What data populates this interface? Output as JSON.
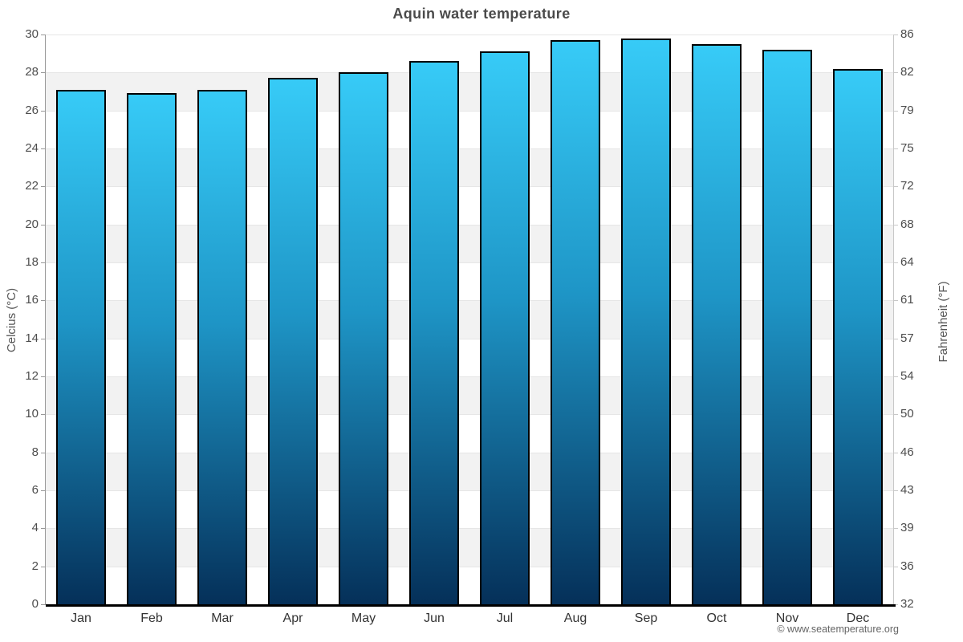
{
  "title": "Aquin water temperature",
  "footer_credit": "© www.seatemperature.org",
  "y_axis_left": {
    "title": "Celcius (°C)"
  },
  "y_axis_right": {
    "title": "Fahrenheit (°F)"
  },
  "chart_data": {
    "type": "bar",
    "title": "Aquin water temperature",
    "series_name": "Water temperature",
    "unit": "°C",
    "categories": [
      "Jan",
      "Feb",
      "Mar",
      "Apr",
      "May",
      "Jun",
      "Jul",
      "Aug",
      "Sep",
      "Oct",
      "Nov",
      "Dec"
    ],
    "values": [
      27.1,
      26.9,
      27.1,
      27.7,
      28.0,
      28.6,
      29.1,
      29.7,
      29.8,
      29.5,
      29.2,
      28.2
    ],
    "ylabel_left": "Celcius (°C)",
    "ylabel_right": "Fahrenheit (°F)",
    "ylim_celsius": [
      0,
      30
    ],
    "yticks_celsius": [
      0,
      2,
      4,
      6,
      8,
      10,
      12,
      14,
      16,
      18,
      20,
      22,
      24,
      26,
      28,
      30
    ],
    "yticks_fahrenheit": [
      "32",
      "36",
      "39",
      "43",
      "46",
      "50",
      "54",
      "57",
      "61",
      "64",
      "68",
      "72",
      "75",
      "79",
      "82",
      "86"
    ],
    "grid": "horizontal-bands-alternating",
    "legend": "none",
    "colors": {
      "bar_gradient_top": "#37cbf7",
      "bar_gradient_mid": "#1e95c6",
      "bar_gradient_bottom": "#053059",
      "bar_border": "#000000",
      "band_gray": "#f2f2f2",
      "band_white": "#ffffff",
      "gridline": "#e6e6e6",
      "axis_left_line": "#999999",
      "axis_right_line": "#c8c8c8",
      "axis_bottom_line": "#000000",
      "title_text": "#4a4a4a",
      "tick_label_text": "#4d4d4d",
      "month_label_text": "#333333",
      "axis_title_text": "#555555",
      "footer_text": "#666666"
    }
  }
}
